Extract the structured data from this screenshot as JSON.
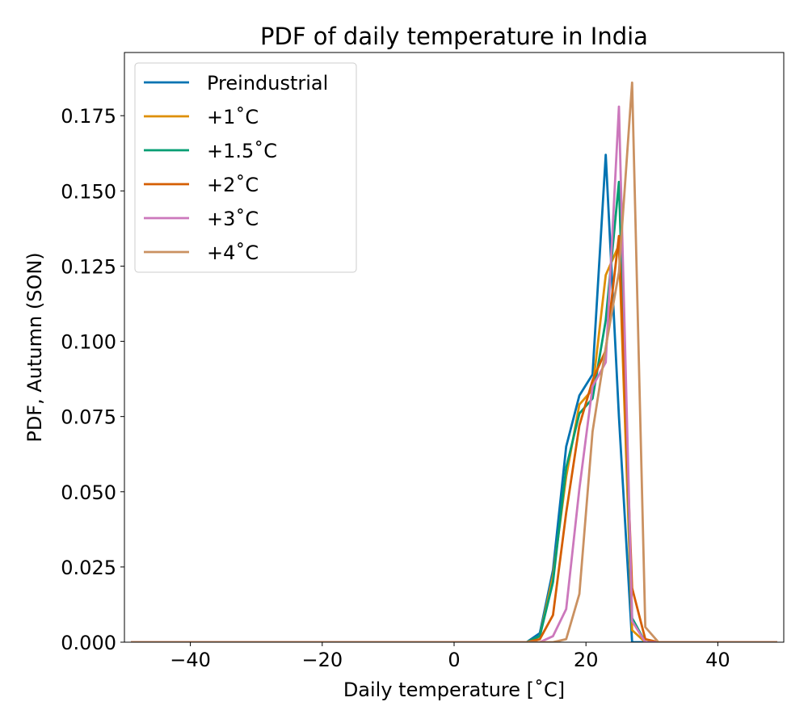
{
  "chart_data": {
    "type": "line",
    "title": "PDF of daily temperature in India",
    "xlabel": "Daily temperature [˚C]",
    "ylabel": "PDF, Autumn (SON)",
    "xlim": [
      -50,
      50
    ],
    "ylim": [
      0,
      0.196
    ],
    "xticks": [
      -40,
      -20,
      0,
      20,
      40
    ],
    "xtick_labels": [
      "−40",
      "−20",
      "0",
      "20",
      "40"
    ],
    "yticks": [
      0.0,
      0.025,
      0.05,
      0.075,
      0.1,
      0.125,
      0.15,
      0.175
    ],
    "ytick_labels": [
      "0.000",
      "0.025",
      "0.050",
      "0.075",
      "0.100",
      "0.125",
      "0.150",
      "0.175"
    ],
    "grid": false,
    "legend_position": "top-left",
    "series": [
      {
        "name": "Preindustrial",
        "color": "#0173b2",
        "x": [
          -49,
          11,
          13,
          15,
          17,
          19,
          21,
          23,
          25,
          27,
          29,
          49
        ],
        "y": [
          0,
          0,
          0.003,
          0.024,
          0.065,
          0.082,
          0.089,
          0.162,
          0.075,
          0,
          0,
          0
        ]
      },
      {
        "name": "+1˚C",
        "color": "#de8f05",
        "x": [
          -49,
          11,
          13,
          15,
          17,
          19,
          21,
          23,
          25,
          27,
          29,
          31,
          49
        ],
        "y": [
          0,
          0,
          0.002,
          0.022,
          0.055,
          0.079,
          0.084,
          0.122,
          0.132,
          0.004,
          0,
          0,
          0
        ]
      },
      {
        "name": "+1.5˚C",
        "color": "#029e73",
        "x": [
          -49,
          11,
          13,
          15,
          17,
          19,
          21,
          23,
          25,
          27,
          29,
          31,
          49
        ],
        "y": [
          0,
          0,
          0.002,
          0.02,
          0.058,
          0.076,
          0.081,
          0.107,
          0.153,
          0.008,
          0,
          0,
          0
        ]
      },
      {
        "name": "+2˚C",
        "color": "#d55e00",
        "x": [
          -49,
          11,
          13,
          15,
          17,
          19,
          21,
          23,
          25,
          27,
          29,
          31,
          49
        ],
        "y": [
          0,
          0,
          0.001,
          0.009,
          0.043,
          0.072,
          0.087,
          0.097,
          0.135,
          0.018,
          0.001,
          0,
          0
        ]
      },
      {
        "name": "+3˚C",
        "color": "#cc78bc",
        "x": [
          -49,
          13,
          15,
          17,
          19,
          21,
          23,
          25,
          27,
          29,
          31,
          49
        ],
        "y": [
          0,
          0,
          0.002,
          0.011,
          0.051,
          0.085,
          0.093,
          0.178,
          0.007,
          0,
          0,
          0
        ]
      },
      {
        "name": "+4˚C",
        "color": "#ca9161",
        "x": [
          -49,
          15,
          17,
          19,
          21,
          23,
          25,
          27,
          29,
          31,
          49
        ],
        "y": [
          0,
          0,
          0.001,
          0.016,
          0.07,
          0.098,
          0.123,
          0.186,
          0.005,
          0,
          0
        ]
      }
    ]
  }
}
